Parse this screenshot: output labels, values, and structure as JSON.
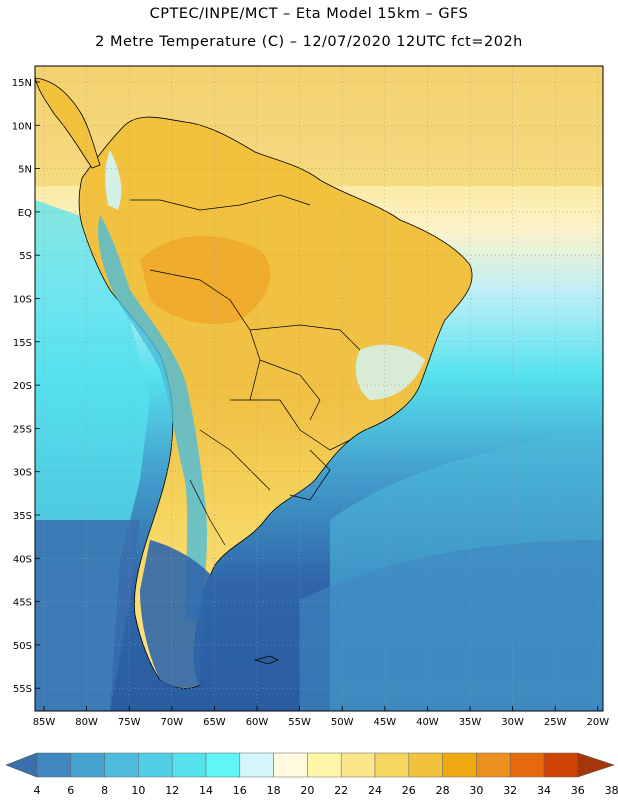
{
  "header": {
    "line1": "CPTEC/INPE/MCT –  Eta Model 15km – GFS",
    "line2": "2 Metre Temperature (C) – 12/07/2020 12UTC fct=202h"
  },
  "map": {
    "lat_labels": [
      "15N",
      "10N",
      "5N",
      "EQ",
      "5S",
      "10S",
      "15S",
      "20S",
      "25S",
      "30S",
      "35S",
      "40S",
      "45S",
      "50S",
      "55S"
    ],
    "lon_labels": [
      "85W",
      "80W",
      "75W",
      "70W",
      "65W",
      "60W",
      "55W",
      "50W",
      "45W",
      "40W",
      "35W",
      "30W",
      "25W",
      "20W"
    ]
  },
  "legend": {
    "labels": [
      "4",
      "6",
      "8",
      "10",
      "12",
      "14",
      "16",
      "18",
      "20",
      "22",
      "24",
      "26",
      "28",
      "30",
      "32",
      "34",
      "36",
      "38"
    ],
    "colors": [
      "#3a6fae",
      "#3f87c0",
      "#45a3cf",
      "#4cbbdc",
      "#4fcfe3",
      "#55e2ee",
      "#61f5f7",
      "#d2f6fa",
      "#fff9e0",
      "#fff7a8",
      "#fbe68a",
      "#f6d560",
      "#f2c23c",
      "#efaa11",
      "#ec8f1e",
      "#e5690d",
      "#cc4303",
      "#a6350b"
    ]
  }
}
